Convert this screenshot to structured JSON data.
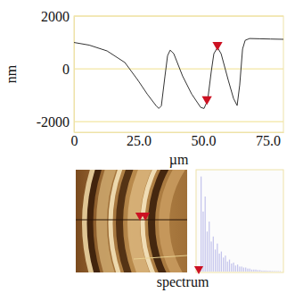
{
  "chart_data": [
    {
      "type": "line",
      "x_label": "µm",
      "y_label": "nm",
      "x": [
        0,
        5.9,
        12.8,
        19.7,
        24.8,
        28.3,
        31.7,
        32.8,
        33.8,
        35.2,
        36.2,
        37.2,
        38.6,
        42,
        45.5,
        49,
        50.3,
        51.7,
        53.1,
        54.1,
        55.5,
        56.9,
        59.7,
        61.7,
        63.1,
        64.1,
        65.2,
        66.2,
        67.9,
        72,
        76,
        81
      ],
      "values": [
        1000,
        900,
        680,
        240,
        -440,
        -950,
        -1390,
        -1500,
        -1400,
        -270,
        500,
        710,
        575,
        -270,
        -950,
        -1460,
        -1500,
        -1190,
        -100,
        575,
        810,
        575,
        -440,
        -1120,
        -1390,
        -610,
        750,
        1080,
        1150,
        1140,
        1130,
        1120
      ],
      "color": "#333333",
      "cursors": {
        "x": [
          51.4,
          55.5
        ],
        "values": [
          -1250,
          810
        ],
        "color": "#cc1122"
      },
      "xlim": [
        0,
        81
      ],
      "ylim": [
        -2400,
        2000
      ],
      "xticks": [
        0,
        {
          "value": 25,
          "label": "25.0"
        },
        {
          "value": 50,
          "label": "50.0"
        },
        {
          "value": 75,
          "label": "75.0"
        }
      ],
      "yticks": [
        -2000,
        0,
        2000
      ],
      "grid": true
    },
    {
      "type": "bar",
      "title": "spectrum",
      "categories": [
        null,
        null,
        null,
        null,
        null,
        null,
        null,
        null,
        null,
        null,
        null,
        null,
        null,
        null,
        null,
        null,
        null,
        null,
        null,
        null,
        null,
        null,
        null,
        null,
        null,
        null,
        null,
        null,
        null,
        null,
        null,
        null,
        null,
        null,
        null,
        null,
        null,
        null,
        null,
        null
      ],
      "values": [
        95,
        60,
        75,
        40,
        50,
        30,
        35,
        22,
        28,
        18,
        20,
        14,
        16,
        10,
        12,
        8,
        9,
        6,
        7,
        5,
        5,
        4,
        4,
        3,
        3,
        2,
        2,
        2,
        1.5,
        1.5,
        1,
        1,
        1,
        0.8,
        0.8,
        0.6,
        0.6,
        0.5,
        0.5,
        0.4
      ],
      "color": "#c4c4ec",
      "ylim": [
        0,
        100
      ],
      "tick_labels": false
    }
  ]
}
